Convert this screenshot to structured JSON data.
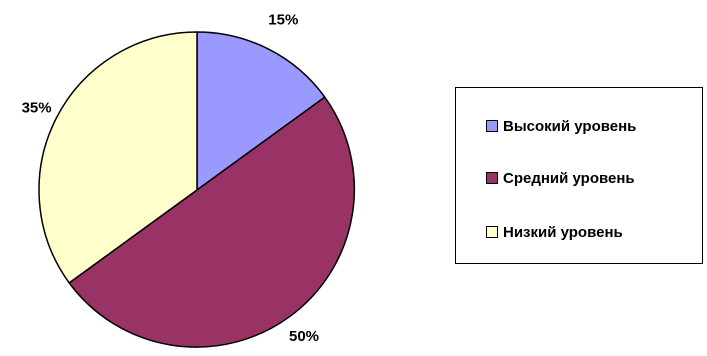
{
  "chart_data": {
    "type": "pie",
    "title": "",
    "start_angle_deg": 0,
    "direction": "clockwise",
    "slices": [
      {
        "name": "Высокий уровень",
        "value": 15,
        "label": "15%",
        "color": "#9999ff"
      },
      {
        "name": "Средний уровень",
        "value": 50,
        "label": "50%",
        "color": "#993366"
      },
      {
        "name": "Низкий уровень",
        "value": 35,
        "label": "35%",
        "color": "#ffffcc"
      }
    ],
    "legend": {
      "position": "right",
      "items": [
        "Высокий уровень",
        "Средний уровень",
        "Низкий уровень"
      ]
    }
  }
}
